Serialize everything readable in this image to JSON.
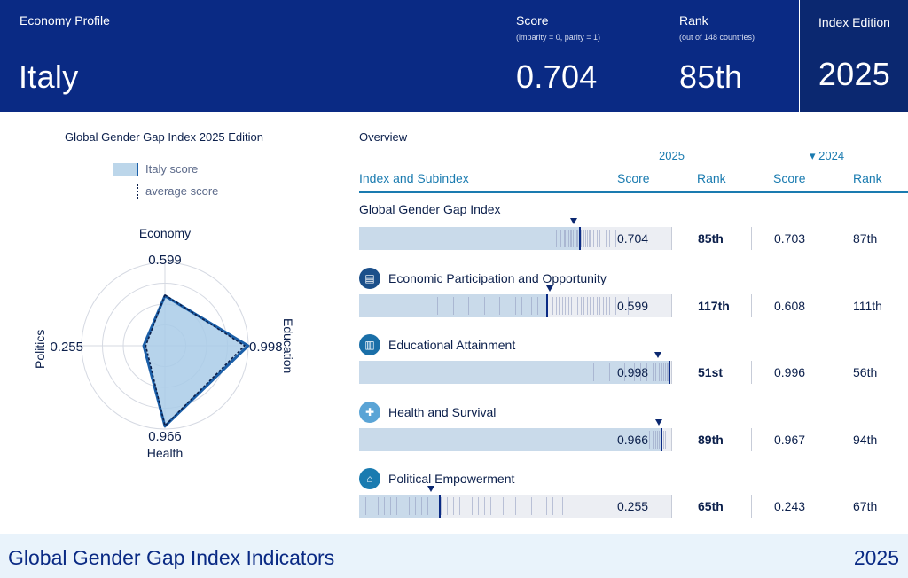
{
  "header": {
    "profile_label": "Economy Profile",
    "country": "Italy",
    "score_label": "Score",
    "score_sub": "(imparity = 0, parity = 1)",
    "score_value": "0.704",
    "rank_label": "Rank",
    "rank_sub": "(out of 148 countries)",
    "rank_value": "85th",
    "edition_label": "Index Edition",
    "edition_value": "2025"
  },
  "radar": {
    "title": "Global Gender Gap Index 2025 Edition",
    "legend_country": "Italy score",
    "legend_average": "average score"
  },
  "overview": {
    "title": "Overview",
    "year_current": "2025",
    "year_previous": "▾ 2024",
    "col_index": "Index and Subindex",
    "col_score": "Score",
    "col_rank": "Rank",
    "col_score_prev": "Score",
    "col_rank_prev": "Rank"
  },
  "chart_data": {
    "type": "radar",
    "axes": [
      {
        "name": "Economy",
        "score": 0.599,
        "label": "0.599",
        "average": 0.61
      },
      {
        "name": "Education",
        "score": 0.998,
        "label": "0.998",
        "average": 0.956
      },
      {
        "name": "Health",
        "score": 0.966,
        "label": "0.966",
        "average": 0.96
      },
      {
        "name": "Politics",
        "score": 0.255,
        "label": "0.255",
        "average": 0.23
      }
    ],
    "range": [
      0,
      1
    ],
    "rows": [
      {
        "name": "Global Gender Gap Index",
        "icon": "",
        "score": 0.704,
        "score_label": "0.704",
        "rank": "85th",
        "score_prev": "0.703",
        "rank_prev": "87th",
        "distribution": [
          0.63,
          0.645,
          0.655,
          0.66,
          0.665,
          0.67,
          0.675,
          0.68,
          0.685,
          0.69,
          0.695,
          0.7,
          0.71,
          0.715,
          0.72,
          0.725,
          0.73,
          0.735,
          0.74,
          0.75,
          0.76,
          0.77,
          0.79,
          0.8,
          0.82,
          0.84
        ],
        "average": 0.688
      },
      {
        "name": "Economic Participation and Opportunity",
        "icon": "briefcase-icon",
        "score": 0.599,
        "score_label": "0.599",
        "rank": "117th",
        "score_prev": "0.608",
        "rank_prev": "111th",
        "distribution": [
          0.25,
          0.3,
          0.35,
          0.4,
          0.45,
          0.5,
          0.52,
          0.55,
          0.57,
          0.6,
          0.62,
          0.63,
          0.64,
          0.65,
          0.66,
          0.67,
          0.68,
          0.69,
          0.7,
          0.71,
          0.72,
          0.73,
          0.74,
          0.75,
          0.76,
          0.77,
          0.78,
          0.79,
          0.8,
          0.82,
          0.84,
          0.86
        ],
        "average": 0.61
      },
      {
        "name": "Educational Attainment",
        "icon": "book-icon",
        "score": 0.998,
        "score_label": "0.998",
        "rank": "51st",
        "score_prev": "0.996",
        "rank_prev": "56th",
        "distribution": [
          0.75,
          0.8,
          0.85,
          0.88,
          0.9,
          0.92,
          0.94,
          0.95,
          0.96,
          0.965,
          0.97,
          0.975,
          0.98,
          0.985,
          0.99,
          0.995,
          1.0
        ],
        "average": 0.956
      },
      {
        "name": "Health and Survival",
        "icon": "cross-icon",
        "score": 0.966,
        "score_label": "0.966",
        "rank": "89th",
        "score_prev": "0.967",
        "rank_prev": "94th",
        "distribution": [
          0.93,
          0.94,
          0.95,
          0.955,
          0.96,
          0.965,
          0.97,
          0.975,
          0.98
        ],
        "average": 0.96
      },
      {
        "name": "Political Empowerment",
        "icon": "building-icon",
        "score": 0.255,
        "score_label": "0.255",
        "rank": "65th",
        "score_prev": "0.243",
        "rank_prev": "67th",
        "distribution": [
          0.02,
          0.04,
          0.06,
          0.08,
          0.1,
          0.12,
          0.14,
          0.16,
          0.18,
          0.2,
          0.22,
          0.24,
          0.26,
          0.28,
          0.3,
          0.32,
          0.34,
          0.36,
          0.38,
          0.4,
          0.42,
          0.44,
          0.46,
          0.5,
          0.55,
          0.6,
          0.62,
          0.65
        ],
        "average": 0.23
      }
    ]
  },
  "colors": {
    "header_bg": "#0a2a84",
    "accent": "#1a7bb0",
    "fill": "#c9daea",
    "marker": "#0a2a84",
    "icon_bg": [
      "#1b4f8a",
      "#1a6fa8",
      "#5aa4d6",
      "#1a7bb0"
    ]
  },
  "footer": {
    "title": "Global Gender Gap Index Indicators",
    "year": "2025"
  }
}
